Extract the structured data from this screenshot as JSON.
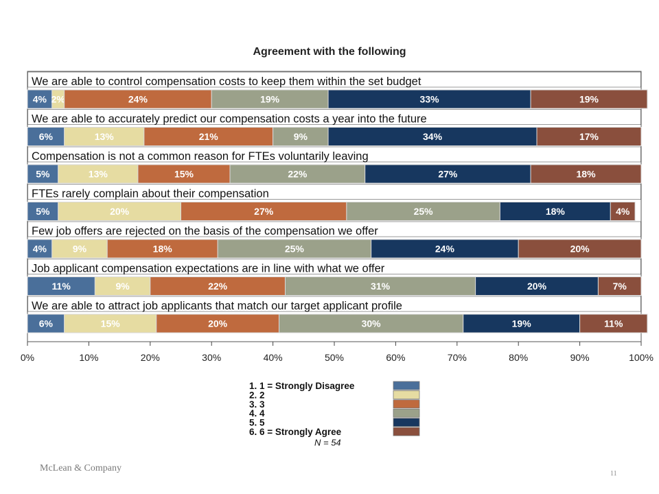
{
  "chart_data": {
    "type": "bar",
    "orientation": "horizontal",
    "stacked": "percent",
    "title": "Agreement with the following",
    "categories": [
      "We are able to control compensation costs to keep them within the set budget",
      "We are able to accurately predict our compensation costs a year into the future",
      "Compensation is not a common reason for FTEs voluntarily leaving",
      "FTEs rarely complain about their compensation",
      "Few job offers are rejected on the basis of the compensation we offer",
      "Job applicant compensation expectations are in line with what we offer",
      "We are able to attract job applicants that match our target applicant profile"
    ],
    "series": [
      {
        "name": "1. 1 = Strongly Disagree",
        "color": "#4a6f9a",
        "values": [
          4,
          6,
          5,
          5,
          4,
          11,
          6
        ]
      },
      {
        "name": "2. 2",
        "color": "#e6dca2",
        "values": [
          2,
          13,
          13,
          20,
          9,
          9,
          15
        ]
      },
      {
        "name": "3. 3",
        "color": "#bf6a3e",
        "values": [
          24,
          21,
          15,
          27,
          18,
          22,
          20
        ]
      },
      {
        "name": "4. 4",
        "color": "#9ba18a",
        "values": [
          19,
          9,
          22,
          25,
          25,
          31,
          30
        ]
      },
      {
        "name": "5. 5",
        "color": "#17375f",
        "values": [
          33,
          34,
          27,
          18,
          24,
          20,
          19
        ]
      },
      {
        "name": "6. 6 = Strongly Agree",
        "color": "#8a4f3d",
        "values": [
          19,
          17,
          18,
          4,
          20,
          7,
          11
        ]
      }
    ],
    "x_ticks": [
      "0%",
      "10%",
      "20%",
      "30%",
      "40%",
      "50%",
      "60%",
      "70%",
      "80%",
      "90%",
      "100%"
    ],
    "xlim": [
      0,
      100
    ],
    "label_suffix": "%",
    "legend_position": "bottom-center",
    "legend_note": "N = 54",
    "grid": false
  },
  "footer": {
    "company": "McLean & Company",
    "page_number": "11"
  }
}
